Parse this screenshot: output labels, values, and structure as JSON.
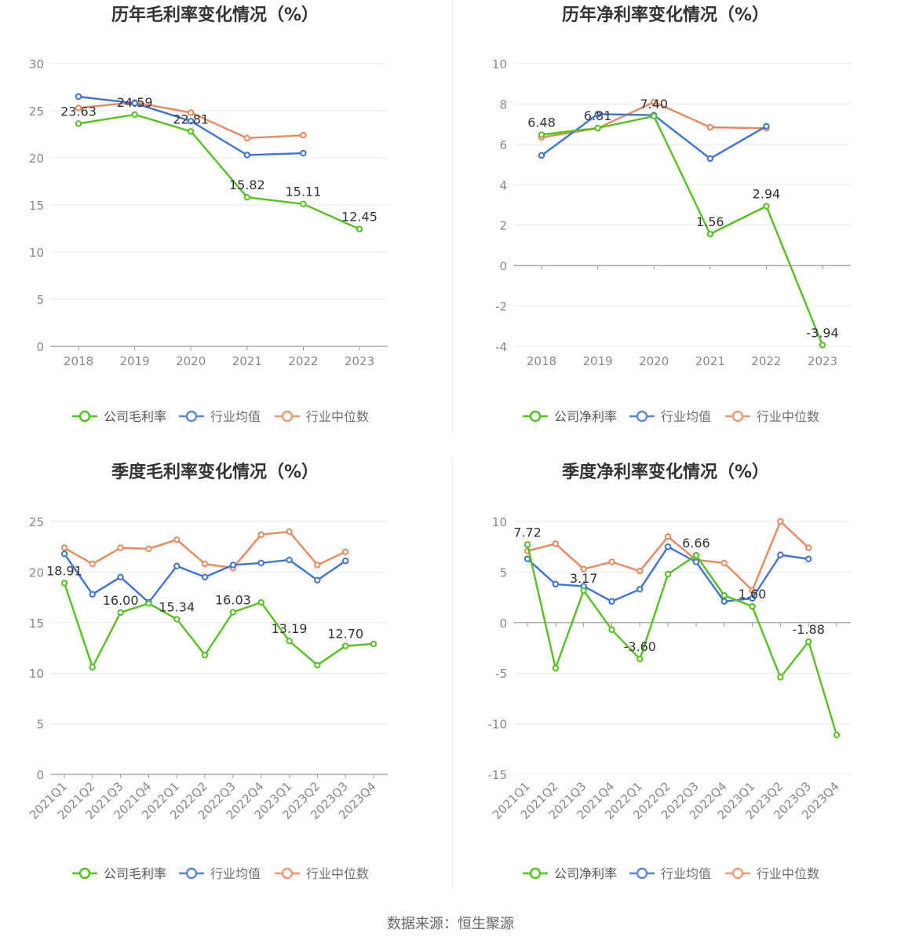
{
  "source_label": "数据来源：恒生聚源",
  "colors": {
    "company": "#52c41a",
    "avg": "#3b74e0",
    "median": "#f0875a"
  },
  "chart_data": [
    {
      "type": "line",
      "title": "历年毛利率变化情况（%）",
      "categories": [
        "2018",
        "2019",
        "2020",
        "2021",
        "2022",
        "2023"
      ],
      "ylim": [
        0,
        30
      ],
      "yticks": [
        0,
        5,
        10,
        15,
        20,
        25,
        30
      ],
      "rotate_labels": false,
      "series": [
        {
          "name": "公司毛利率",
          "key": "company",
          "values": [
            23.63,
            24.59,
            22.81,
            15.82,
            15.11,
            12.45
          ]
        },
        {
          "name": "行业均值",
          "key": "avg",
          "values": [
            26.5,
            25.8,
            23.9,
            20.3,
            20.5,
            null
          ]
        },
        {
          "name": "行业中位数",
          "key": "median",
          "values": [
            25.3,
            25.9,
            24.8,
            22.1,
            22.4,
            null
          ]
        }
      ],
      "labels": [
        {
          "i": 0,
          "text": "23.63"
        },
        {
          "i": 1,
          "text": "24.59"
        },
        {
          "i": 2,
          "text": "22.81"
        },
        {
          "i": 3,
          "text": "15.82"
        },
        {
          "i": 4,
          "text": "15.11"
        },
        {
          "i": 5,
          "text": "12.45"
        }
      ]
    },
    {
      "type": "line",
      "title": "历年净利率变化情况（%）",
      "categories": [
        "2018",
        "2019",
        "2020",
        "2021",
        "2022",
        "2023"
      ],
      "ylim": [
        -4,
        10
      ],
      "yticks": [
        -4,
        -2,
        0,
        2,
        4,
        6,
        8,
        10
      ],
      "rotate_labels": false,
      "series": [
        {
          "name": "公司净利率",
          "key": "company",
          "values": [
            6.48,
            6.81,
            7.4,
            1.56,
            2.94,
            -3.94
          ]
        },
        {
          "name": "行业均值",
          "key": "avg",
          "values": [
            5.45,
            7.5,
            7.45,
            5.3,
            6.9,
            null
          ]
        },
        {
          "name": "行业中位数",
          "key": "median",
          "values": [
            6.35,
            6.8,
            8.1,
            6.85,
            6.8,
            null
          ]
        }
      ],
      "labels": [
        {
          "i": 0,
          "text": "6.48"
        },
        {
          "i": 1,
          "text": "6.81"
        },
        {
          "i": 2,
          "text": "7.40"
        },
        {
          "i": 3,
          "text": "1.56"
        },
        {
          "i": 4,
          "text": "2.94"
        },
        {
          "i": 5,
          "text": "-3.94"
        }
      ]
    },
    {
      "type": "line",
      "title": "季度毛利率变化情况（%）",
      "categories": [
        "2021Q1",
        "2021Q2",
        "2021Q3",
        "2021Q4",
        "2022Q1",
        "2022Q2",
        "2022Q3",
        "2022Q4",
        "2023Q1",
        "2023Q2",
        "2023Q3",
        "2023Q4"
      ],
      "ylim": [
        0,
        25
      ],
      "yticks": [
        0,
        5,
        10,
        15,
        20,
        25
      ],
      "rotate_labels": true,
      "series": [
        {
          "name": "公司毛利率",
          "key": "company",
          "values": [
            18.91,
            10.6,
            16.0,
            16.9,
            15.34,
            11.8,
            16.03,
            17.0,
            13.19,
            10.8,
            12.7,
            12.9
          ]
        },
        {
          "name": "行业均值",
          "key": "avg",
          "values": [
            21.8,
            17.8,
            19.5,
            17.0,
            20.6,
            19.5,
            20.7,
            20.9,
            21.2,
            19.2,
            21.1,
            null
          ]
        },
        {
          "name": "行业中位数",
          "key": "median",
          "values": [
            22.4,
            20.8,
            22.4,
            22.3,
            23.2,
            20.8,
            20.4,
            23.7,
            24.0,
            20.7,
            22.0,
            null
          ]
        }
      ],
      "labels": [
        {
          "i": 0,
          "text": "18.91"
        },
        {
          "i": 2,
          "text": "16.00"
        },
        {
          "i": 4,
          "text": "15.34"
        },
        {
          "i": 6,
          "text": "16.03"
        },
        {
          "i": 8,
          "text": "13.19"
        },
        {
          "i": 10,
          "text": "12.70"
        }
      ]
    },
    {
      "type": "line",
      "title": "季度净利率变化情况（%）",
      "categories": [
        "2021Q1",
        "2021Q2",
        "2021Q3",
        "2021Q4",
        "2022Q1",
        "2022Q2",
        "2022Q3",
        "2022Q4",
        "2023Q1",
        "2023Q2",
        "2023Q3",
        "2023Q4"
      ],
      "ylim": [
        -15,
        10
      ],
      "yticks": [
        -15,
        -10,
        -5,
        0,
        5,
        10
      ],
      "rotate_labels": true,
      "series": [
        {
          "name": "公司净利率",
          "key": "company",
          "values": [
            7.72,
            -4.5,
            3.17,
            -0.7,
            -3.6,
            4.8,
            6.66,
            2.7,
            1.6,
            -5.4,
            -1.88,
            -11.1
          ]
        },
        {
          "name": "行业均值",
          "key": "avg",
          "values": [
            6.3,
            3.8,
            3.6,
            2.1,
            3.3,
            7.5,
            6.0,
            2.1,
            2.4,
            6.7,
            6.3,
            null
          ]
        },
        {
          "name": "行业中位数",
          "key": "median",
          "values": [
            7.1,
            7.8,
            5.3,
            6.0,
            5.1,
            8.5,
            6.2,
            5.9,
            3.2,
            10.0,
            7.4,
            null
          ]
        }
      ],
      "labels": [
        {
          "i": 0,
          "text": "7.72"
        },
        {
          "i": 2,
          "text": "3.17"
        },
        {
          "i": 4,
          "text": "-3.60"
        },
        {
          "i": 6,
          "text": "6.66"
        },
        {
          "i": 8,
          "text": "1.60"
        },
        {
          "i": 10,
          "text": "-1.88"
        }
      ]
    }
  ]
}
